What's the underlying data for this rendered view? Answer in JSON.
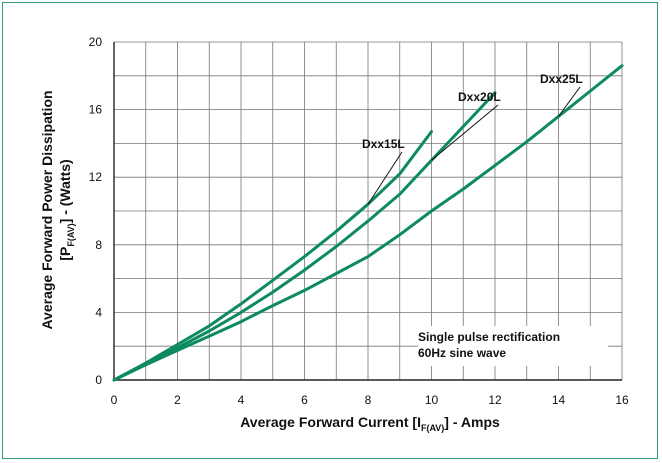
{
  "colors": {
    "frame": "#2e9e6a",
    "curve": "#0e8a62",
    "grid": "#777777",
    "axis": "#222222"
  },
  "chart_data": {
    "type": "line",
    "xlabel_main": "Average Forward Current [I",
    "xlabel_sub": "F(AV)",
    "xlabel_end": "] - Amps",
    "ylabel_line1": "Average Forward Power Dissipation",
    "ylabel_line2_start": "[P",
    "ylabel_line2_sub": "F(AV)",
    "ylabel_line2_end": "] - (Watts)",
    "xlim": [
      0,
      16
    ],
    "ylim": [
      0,
      20
    ],
    "xticks": [
      0,
      2,
      4,
      6,
      8,
      10,
      12,
      14,
      16
    ],
    "yticks": [
      0,
      4,
      8,
      12,
      16,
      20
    ],
    "grid": true,
    "annotation": [
      "Single pulse rectification",
      "60Hz sine wave"
    ],
    "series": [
      {
        "name": "Dxx15L",
        "x": [
          0,
          1,
          2,
          3,
          4,
          5,
          6,
          7,
          8,
          9,
          10
        ],
        "y": [
          0,
          1.0,
          2.1,
          3.2,
          4.5,
          5.9,
          7.3,
          8.8,
          10.4,
          12.2,
          14.7
        ]
      },
      {
        "name": "Dxx20L",
        "x": [
          0,
          1,
          2,
          3,
          4,
          5,
          6,
          7,
          8,
          9,
          10,
          11,
          12
        ],
        "y": [
          0,
          0.95,
          1.9,
          2.9,
          4.0,
          5.2,
          6.5,
          7.9,
          9.4,
          11.0,
          13.0,
          15.0,
          17.0
        ]
      },
      {
        "name": "Dxx25L",
        "x": [
          0,
          1,
          2,
          3,
          4,
          5,
          6,
          7,
          8,
          9,
          10,
          11,
          12,
          13,
          14,
          15,
          16
        ],
        "y": [
          0,
          0.9,
          1.75,
          2.6,
          3.45,
          4.4,
          5.3,
          6.3,
          7.3,
          8.6,
          10.0,
          11.3,
          12.7,
          14.1,
          15.6,
          17.1,
          18.6
        ]
      }
    ]
  }
}
